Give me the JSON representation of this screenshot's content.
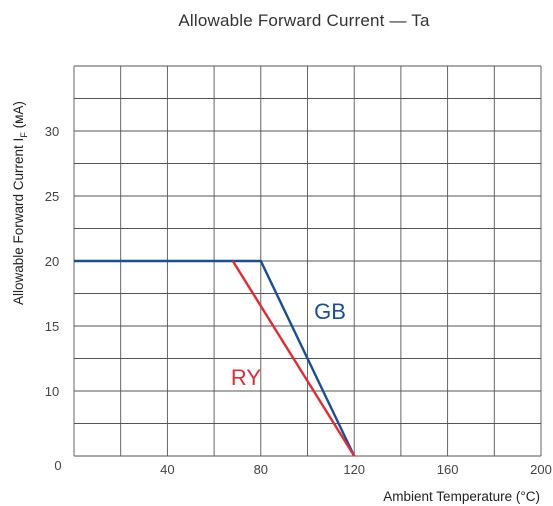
{
  "chart_data": {
    "type": "line",
    "title": "Allowable Forward Current — Ta",
    "xlabel": "Ambient Temperature (°C)",
    "ylabel": "Allowable Forward Current I",
    "ylabel_subscript": "F",
    "ylabel_unit": " (мA)",
    "xlim": [
      0,
      200
    ],
    "ylim": [
      5,
      35
    ],
    "x_ticks": [
      "40",
      "80",
      "120",
      "160",
      "200"
    ],
    "x_tick_values": [
      40,
      80,
      120,
      160,
      200
    ],
    "y_ticks": [
      "10",
      "15",
      "20",
      "25",
      "30"
    ],
    "y_tick_values": [
      10,
      15,
      20,
      25,
      30
    ],
    "origin_label": "0",
    "grid": true,
    "series": [
      {
        "name": "GB",
        "color": "#1a4f96",
        "x": [
          0,
          80,
          120
        ],
        "y": [
          20,
          20,
          5
        ]
      },
      {
        "name": "RY",
        "color": "#e02d35",
        "x": [
          68,
          120
        ],
        "y": [
          20,
          5
        ]
      }
    ]
  }
}
